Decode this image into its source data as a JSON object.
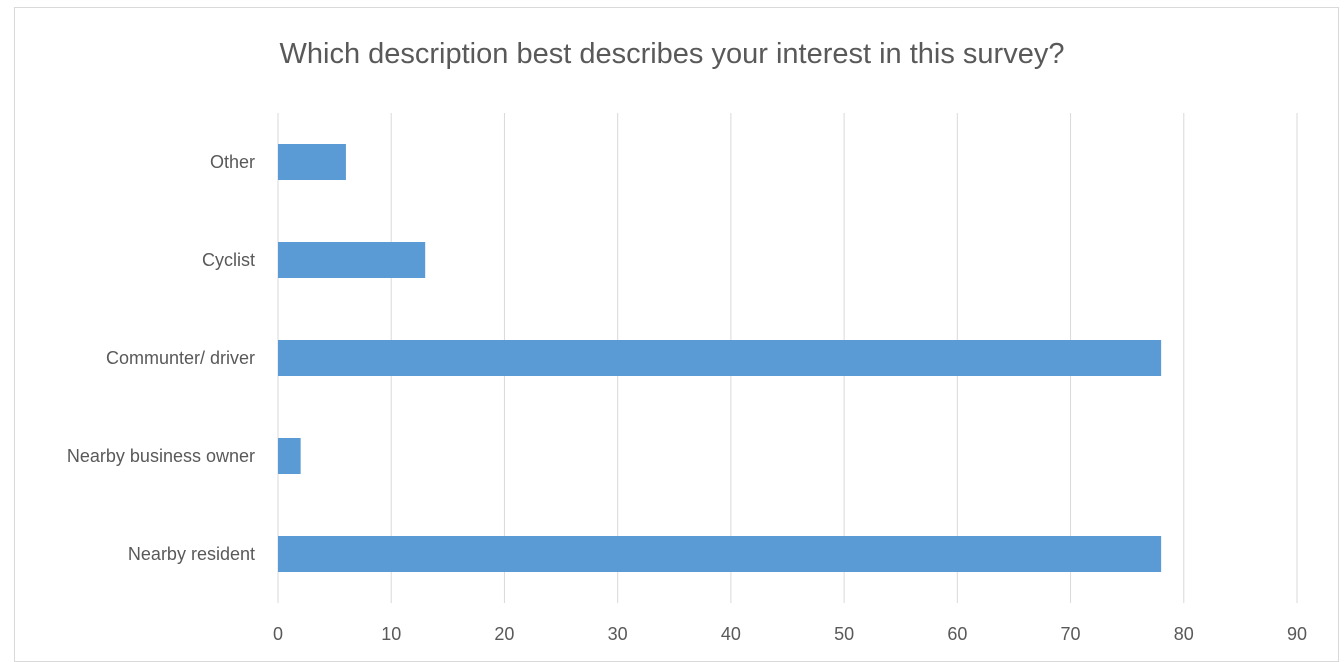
{
  "chart_data": {
    "type": "bar",
    "orientation": "horizontal",
    "title": "Which description best describes your interest in this survey?",
    "categories": [
      "Nearby resident",
      "Nearby business owner",
      "Communter/ driver",
      "Cyclist",
      "Other"
    ],
    "values": [
      78,
      2,
      78,
      13,
      6
    ],
    "xlim": [
      0,
      90
    ],
    "x_ticks": [
      0,
      10,
      20,
      30,
      40,
      50,
      60,
      70,
      80,
      90
    ],
    "grid": true,
    "bar_color": "#5b9bd5",
    "grid_color": "#d9d9d9"
  }
}
